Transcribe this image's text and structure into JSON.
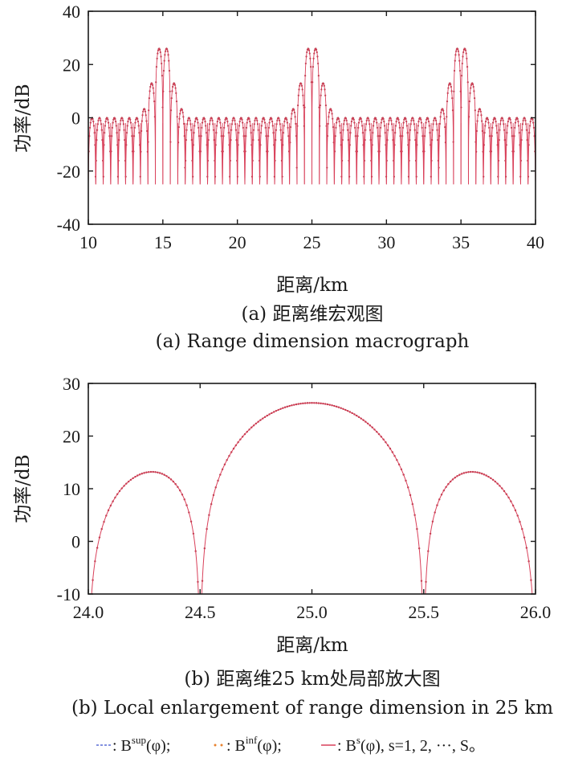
{
  "chart_data": [
    {
      "type": "line",
      "ylabel": "功率/dB",
      "xlabel": "距离/km",
      "xlim": [
        10,
        40
      ],
      "ylim": [
        -40,
        40
      ],
      "xticks": [
        "10",
        "15",
        "20",
        "25",
        "30",
        "35",
        "40"
      ],
      "yticks": [
        "-40",
        "-20",
        "0",
        "20",
        "40"
      ],
      "peaks_km": [
        15,
        25,
        35
      ],
      "peak_value_db": 26,
      "first_sidelobe_db": 13,
      "min_sidelobe_db": 0,
      "null_floor_db": -25,
      "null_spacing_km": 0.5,
      "caption_cn": "(a) 距离维宏观图",
      "caption_en": "(a) Range dimension macrograph"
    },
    {
      "type": "line",
      "ylabel": "功率/dB",
      "xlabel": "距离/km",
      "xlim": [
        24.0,
        26.0
      ],
      "ylim": [
        -10,
        30
      ],
      "xticks": [
        "24.0",
        "24.5",
        "25.0",
        "25.5",
        "26.0"
      ],
      "yticks": [
        "-10",
        "0",
        "10",
        "20",
        "30"
      ],
      "main_lobe": {
        "center_km": 25.0,
        "peak_db": 26.3,
        "nulls_km": [
          24.5,
          25.5
        ]
      },
      "side_lobes": [
        {
          "center_km": 24.3,
          "peak_db": 13.0
        },
        {
          "center_km": 25.7,
          "peak_db": 13.0
        }
      ],
      "caption_cn": "(b) 距离维25 km处局部放大图",
      "caption_en": "(b) Local enlargement of range dimension in 25 km"
    }
  ],
  "legend": {
    "items": [
      {
        "label": ": B",
        "sup": "sup",
        "tail": "(φ);",
        "color": "#5b6fd6",
        "style": "dashed"
      },
      {
        "label": ": B",
        "sup": "inf",
        "tail": "(φ);",
        "color": "#e8822e",
        "style": "dotted"
      },
      {
        "label": ": B",
        "sup": "s",
        "tail": "(φ), s=1, 2, ···, S。",
        "color": "#d9405a",
        "style": "solid"
      }
    ]
  },
  "colors": {
    "series": "#d9405a",
    "marker": "#b03a48"
  }
}
